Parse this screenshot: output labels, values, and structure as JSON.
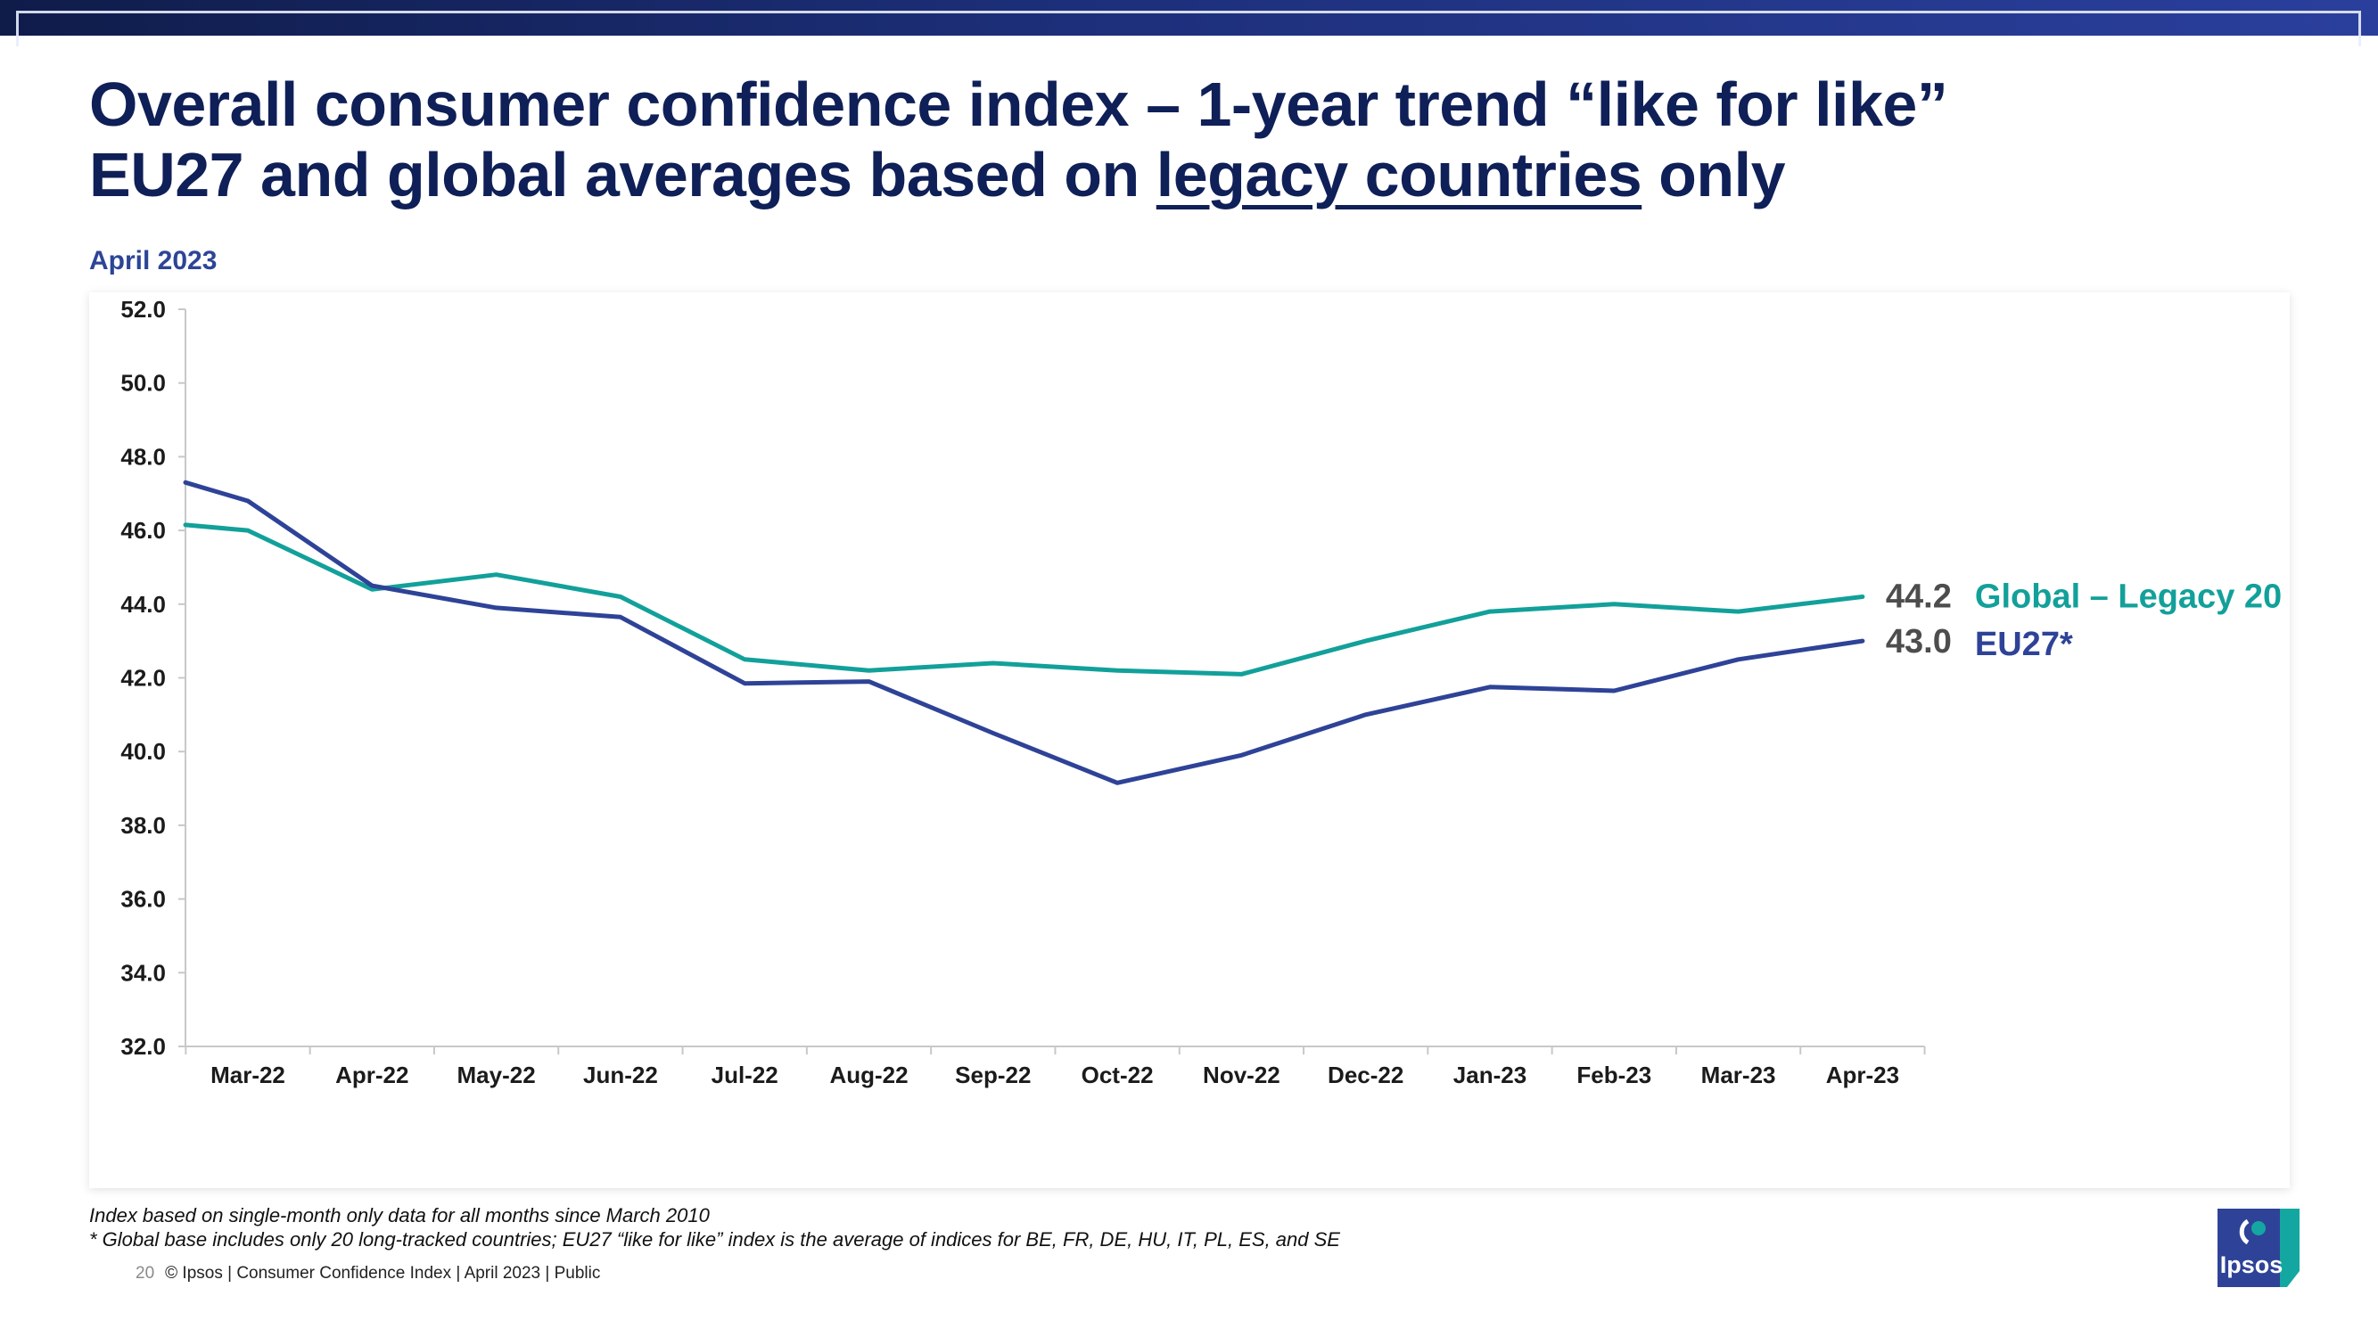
{
  "title": {
    "line1": "Overall consumer confidence index – 1-year trend “like for like”",
    "line2_pre": "EU27 and global averages based on ",
    "line2_underlined": "legacy countries",
    "line2_post": " only"
  },
  "date_label": "April 2023",
  "colors": {
    "global": "#12a09a",
    "eu27": "#2e4397",
    "title": "#0f1f57",
    "axis": "#c8c8c8"
  },
  "chart_data": {
    "type": "line",
    "categories": [
      "Mar-22",
      "Apr-22",
      "May-22",
      "Jun-22",
      "Jul-22",
      "Aug-22",
      "Sep-22",
      "Oct-22",
      "Nov-22",
      "Dec-22",
      "Jan-23",
      "Feb-23",
      "Mar-23",
      "Apr-23"
    ],
    "x": [
      -0.5,
      0,
      1,
      2,
      3,
      4,
      5,
      6,
      7,
      8,
      9,
      10,
      11,
      12,
      13
    ],
    "series": [
      {
        "name": "Global – Legacy 20",
        "color": "#12a09a",
        "values": [
          46.15,
          46.0,
          44.4,
          44.8,
          44.2,
          42.5,
          42.2,
          42.4,
          42.2,
          42.1,
          43.0,
          43.8,
          44.0,
          43.8,
          44.2
        ],
        "end_label": "44.2"
      },
      {
        "name": "EU27*",
        "color": "#2e4397",
        "values": [
          47.3,
          46.8,
          44.5,
          43.9,
          43.65,
          41.85,
          41.9,
          40.5,
          39.15,
          39.9,
          41.0,
          41.75,
          41.65,
          42.5,
          43.0
        ],
        "end_label": "43.0"
      }
    ],
    "y_ticks": [
      "52.0",
      "50.0",
      "48.0",
      "46.0",
      "44.0",
      "42.0",
      "40.0",
      "38.0",
      "36.0",
      "34.0",
      "32.0"
    ],
    "ylim": [
      32,
      52
    ],
    "xlabel": "",
    "ylabel": "",
    "grid": false,
    "legend": "right"
  },
  "footnotes": {
    "line1": "Index based on single-month only data for all months since March 2010",
    "line2": "* Global base includes only 20 long-tracked countries; EU27 “like for like” index is the average of indices for BE, FR, DE, HU, IT, PL, ES, and SE"
  },
  "footer": {
    "page_number": "20",
    "text": "© Ipsos | Consumer Confidence Index | April 2023 | Public"
  },
  "logo": {
    "text": "Ipsos"
  }
}
